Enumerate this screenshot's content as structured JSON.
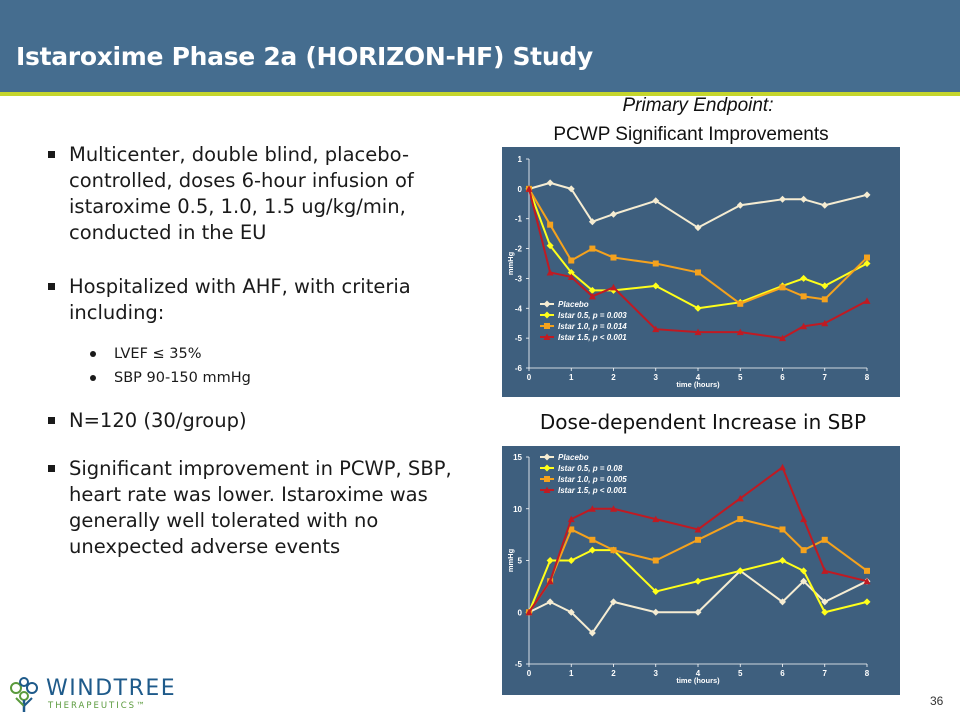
{
  "slide": {
    "title": "Istaroxime Phase 2a (HORIZON-HF) Study",
    "page_number": "36"
  },
  "bullets": [
    {
      "text": "Multicenter, double blind, placebo-controlled, doses 6-hour infusion of istaroxime 0.5, 1.0, 1.5 ug/kg/min, conducted in the EU"
    },
    {
      "text": "Hospitalized with AHF, with  criteria including:"
    },
    {
      "text": "N=120 (30/group)"
    },
    {
      "text": "Significant improvement in PCWP, SBP, heart rate was lower. Istaroxime was generally well tolerated with no unexpected adverse events"
    }
  ],
  "sub_bullets": [
    {
      "text": "LVEF ≤ 35%"
    },
    {
      "text": "SBP 90-150 mmHg"
    }
  ],
  "captions": {
    "chart1_line1": "Primary Endpoint:",
    "chart1_line2": "PCWP Significant Improvements",
    "chart2": "Dose-dependent Increase in SBP"
  },
  "logo": {
    "name": "WINDTREE",
    "sub": "THERAPEUTICS™"
  },
  "colors": {
    "placebo": "#f5ecd2",
    "istar05": "#ffff1a",
    "istar10": "#f5a21d",
    "istar15": "#c01a22",
    "chart_bg": "#3e5f7e",
    "title_bar": "#456d8f",
    "accent": "#c5d52c"
  },
  "chart_data": [
    {
      "type": "line",
      "xlabel": "time (hours)",
      "ylabel": "mmHg",
      "xlim": [
        0,
        8
      ],
      "ylim": [
        -6,
        1
      ],
      "xticks": [
        0,
        1,
        2,
        3,
        4,
        5,
        6,
        7,
        8
      ],
      "yticks": [
        1,
        0,
        -1,
        -2,
        -3,
        -4,
        -5,
        -6
      ],
      "legend_position": "lower-left",
      "series": [
        {
          "name": "Placebo",
          "color": "#f5ecd2",
          "marker": "diamond",
          "x": [
            0,
            0.5,
            1,
            1.5,
            2,
            3,
            4,
            5,
            6,
            6.5,
            7,
            8
          ],
          "y": [
            0,
            0.2,
            0,
            -1.1,
            -0.85,
            -0.4,
            -1.3,
            -0.55,
            -0.35,
            -0.35,
            -0.55,
            -0.2
          ]
        },
        {
          "name": "Istar 0.5, p = 0.003",
          "color": "#ffff1a",
          "marker": "diamond",
          "x": [
            0,
            0.5,
            1,
            1.5,
            2,
            3,
            4,
            5,
            6,
            6.5,
            7,
            8
          ],
          "y": [
            0,
            -1.9,
            -2.8,
            -3.4,
            -3.4,
            -3.25,
            -4.0,
            -3.8,
            -3.25,
            -3.0,
            -3.25,
            -2.5
          ]
        },
        {
          "name": "Istar 1.0, p = 0.014",
          "color": "#f5a21d",
          "marker": "square",
          "x": [
            0,
            0.5,
            1,
            1.5,
            2,
            3,
            4,
            5,
            6,
            6.5,
            7,
            8
          ],
          "y": [
            0,
            -1.2,
            -2.4,
            -2.0,
            -2.3,
            -2.5,
            -2.8,
            -3.85,
            -3.3,
            -3.6,
            -3.7,
            -2.3
          ]
        },
        {
          "name": "Istar 1.5, p < 0.001",
          "color": "#c01a22",
          "marker": "triangle",
          "x": [
            0,
            0.5,
            1,
            1.5,
            2,
            3,
            4,
            5,
            6,
            6.5,
            7,
            8
          ],
          "y": [
            0,
            -2.8,
            -2.95,
            -3.6,
            -3.3,
            -4.7,
            -4.8,
            -4.8,
            -5.0,
            -4.6,
            -4.5,
            -3.75
          ]
        }
      ]
    },
    {
      "type": "line",
      "xlabel": "time (hours)",
      "ylabel": "mmHg",
      "xlim": [
        0,
        8
      ],
      "ylim": [
        -5,
        15
      ],
      "xticks": [
        0,
        1,
        2,
        3,
        4,
        5,
        6,
        7,
        8
      ],
      "yticks": [
        15,
        10,
        5,
        0,
        -5
      ],
      "legend_position": "top-left",
      "series": [
        {
          "name": "Placebo",
          "color": "#f5ecd2",
          "marker": "diamond",
          "x": [
            0,
            0.5,
            1,
            1.5,
            2,
            3,
            4,
            5,
            6,
            6.5,
            7,
            8
          ],
          "y": [
            0,
            1,
            0,
            -2,
            1,
            0,
            0,
            4,
            1,
            3,
            1,
            3
          ]
        },
        {
          "name": "Istar 0.5, p = 0.08",
          "color": "#ffff1a",
          "marker": "diamond",
          "x": [
            0,
            0.5,
            1,
            1.5,
            2,
            3,
            4,
            5,
            6,
            6.5,
            7,
            8
          ],
          "y": [
            0,
            5,
            5,
            6,
            6,
            2,
            3,
            4,
            5,
            4,
            0,
            1
          ]
        },
        {
          "name": "Istar 1.0, p = 0.005",
          "color": "#f5a21d",
          "marker": "square",
          "x": [
            0,
            0.5,
            1,
            1.5,
            2,
            3,
            4,
            5,
            6,
            6.5,
            7,
            8
          ],
          "y": [
            0,
            3,
            8,
            7,
            6,
            5,
            7,
            9,
            8,
            6,
            7,
            4
          ]
        },
        {
          "name": "Istar 1.5, p < 0.001",
          "color": "#c01a22",
          "marker": "triangle",
          "x": [
            0,
            0.5,
            1,
            1.5,
            2,
            3,
            4,
            5,
            6,
            6.5,
            7,
            8
          ],
          "y": [
            0,
            3,
            9,
            10,
            10,
            9,
            8,
            11,
            14,
            9,
            4,
            3
          ]
        }
      ]
    }
  ]
}
